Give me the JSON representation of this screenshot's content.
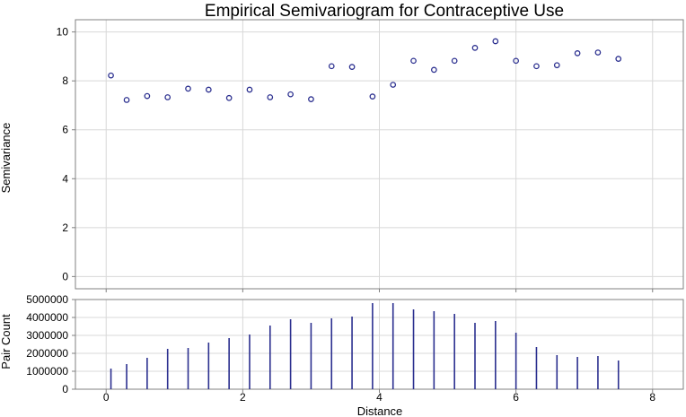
{
  "chart_data": {
    "type": "scatter",
    "title": "Empirical Semivariogram for Contraceptive Use",
    "xlabel": "Distance",
    "xlim": [
      -0.45,
      8.45
    ],
    "x_ticks": [
      "0",
      "2",
      "4",
      "6",
      "8"
    ],
    "x_tick_values": [
      0,
      2,
      4,
      6,
      8
    ],
    "grid": true,
    "color": "#2b2f8f",
    "panels": [
      {
        "name": "semivariance",
        "type": "scatter",
        "ylabel": "Semivariance",
        "ylim": [
          -0.5,
          10.5
        ],
        "y_ticks": [
          "0",
          "2",
          "4",
          "6",
          "8",
          "10"
        ],
        "y_tick_values": [
          0,
          2,
          4,
          6,
          8,
          10
        ],
        "x": [
          0.07,
          0.3,
          0.6,
          0.9,
          1.2,
          1.5,
          1.8,
          2.1,
          2.4,
          2.7,
          3.0,
          3.3,
          3.6,
          3.9,
          4.2,
          4.5,
          4.8,
          5.1,
          5.4,
          5.7,
          6.0,
          6.3,
          6.6,
          6.9,
          7.2,
          7.5
        ],
        "y": [
          8.22,
          7.22,
          7.38,
          7.33,
          7.68,
          7.64,
          7.3,
          7.64,
          7.33,
          7.45,
          7.25,
          8.6,
          8.57,
          7.36,
          7.84,
          8.82,
          8.45,
          8.82,
          9.35,
          9.62,
          8.82,
          8.6,
          8.64,
          9.13,
          9.16,
          8.9
        ]
      },
      {
        "name": "pair-count",
        "type": "bar",
        "ylabel": "Pair Count",
        "ylim": [
          0,
          5000000
        ],
        "y_ticks": [
          "0",
          "1000000",
          "2000000",
          "3000000",
          "4000000",
          "5000000"
        ],
        "y_tick_values": [
          0,
          1000000,
          2000000,
          3000000,
          4000000,
          5000000
        ],
        "x": [
          0.07,
          0.3,
          0.6,
          0.9,
          1.2,
          1.5,
          1.8,
          2.1,
          2.4,
          2.7,
          3.0,
          3.3,
          3.6,
          3.9,
          4.2,
          4.5,
          4.8,
          5.1,
          5.4,
          5.7,
          6.0,
          6.3,
          6.6,
          6.9,
          7.2,
          7.5
        ],
        "y": [
          1150000,
          1400000,
          1750000,
          2250000,
          2300000,
          2600000,
          2850000,
          3050000,
          3550000,
          3900000,
          3700000,
          3950000,
          4050000,
          4800000,
          4800000,
          4450000,
          4350000,
          4200000,
          3700000,
          3800000,
          3150000,
          2350000,
          1900000,
          1800000,
          1850000,
          1600000
        ]
      }
    ]
  }
}
